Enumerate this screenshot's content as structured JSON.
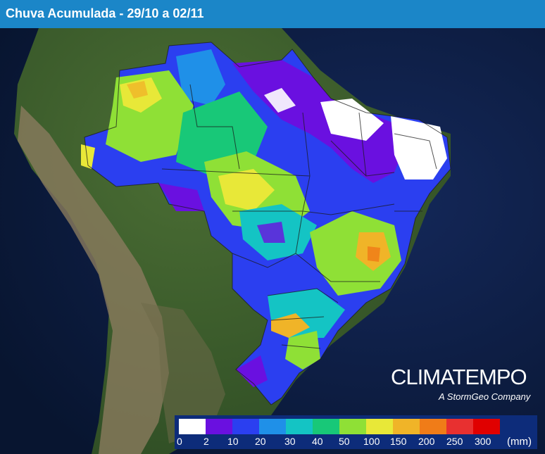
{
  "header": {
    "title": "Chuva Acumulada - 29/10 a 02/11"
  },
  "brand": {
    "name": "CLIMATEMPO",
    "tagline": "A StormGeo Company"
  },
  "legend": {
    "unit": "(mm)",
    "ticks": [
      "0",
      "2",
      "10",
      "20",
      "30",
      "40",
      "50",
      "100",
      "150",
      "200",
      "250",
      "300"
    ],
    "colors": [
      "#ffffff",
      "#6a10e0",
      "#2b3ff0",
      "#1f90e8",
      "#14c4c4",
      "#18c878",
      "#8fe036",
      "#e8e838",
      "#f0b428",
      "#f07c18",
      "#e83030",
      "#e00000"
    ]
  },
  "map": {
    "colors": {
      "ocean": "#0a1a3a",
      "land": "#3a5e2a",
      "andes": "#8a7a60"
    }
  }
}
